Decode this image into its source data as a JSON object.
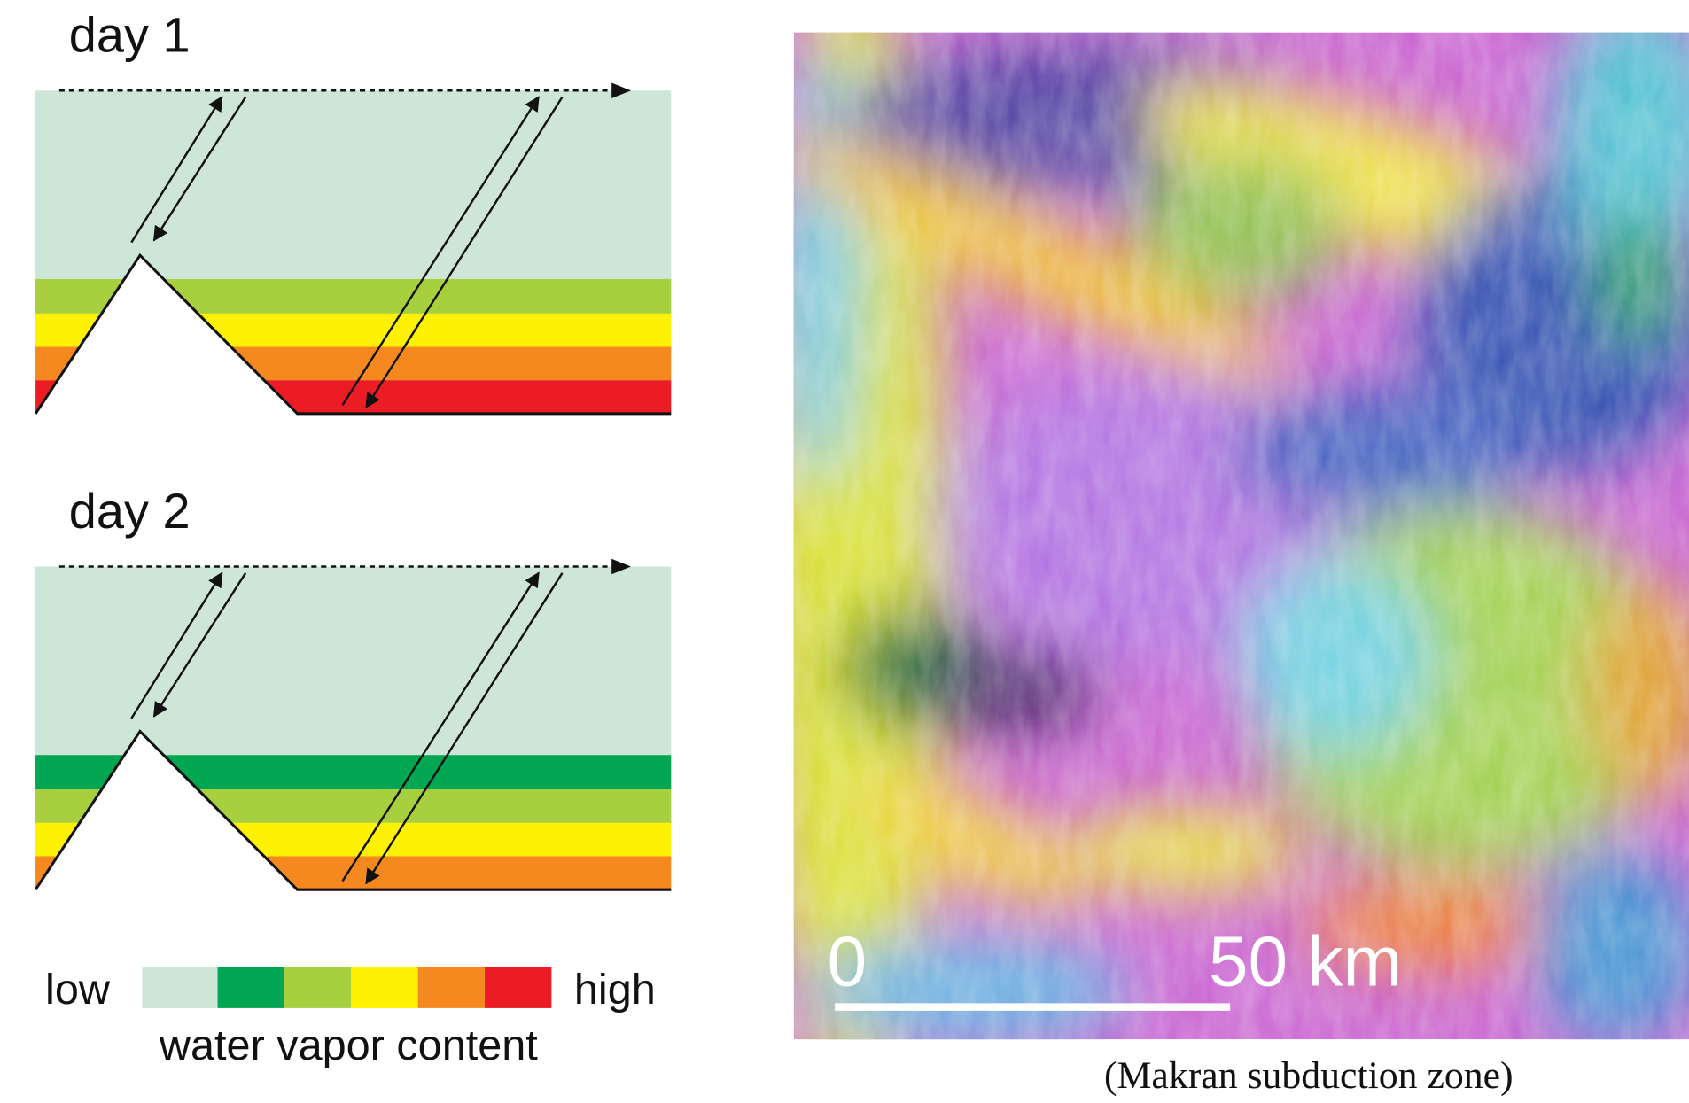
{
  "panels": [
    {
      "label": "day 1"
    },
    {
      "label": "day 2"
    }
  ],
  "legend": {
    "low": "low",
    "high": "high",
    "title": "water vapor content"
  },
  "map": {
    "scale_start": "0",
    "scale_end": "50 km",
    "caption": "(Makran subduction zone)"
  }
}
